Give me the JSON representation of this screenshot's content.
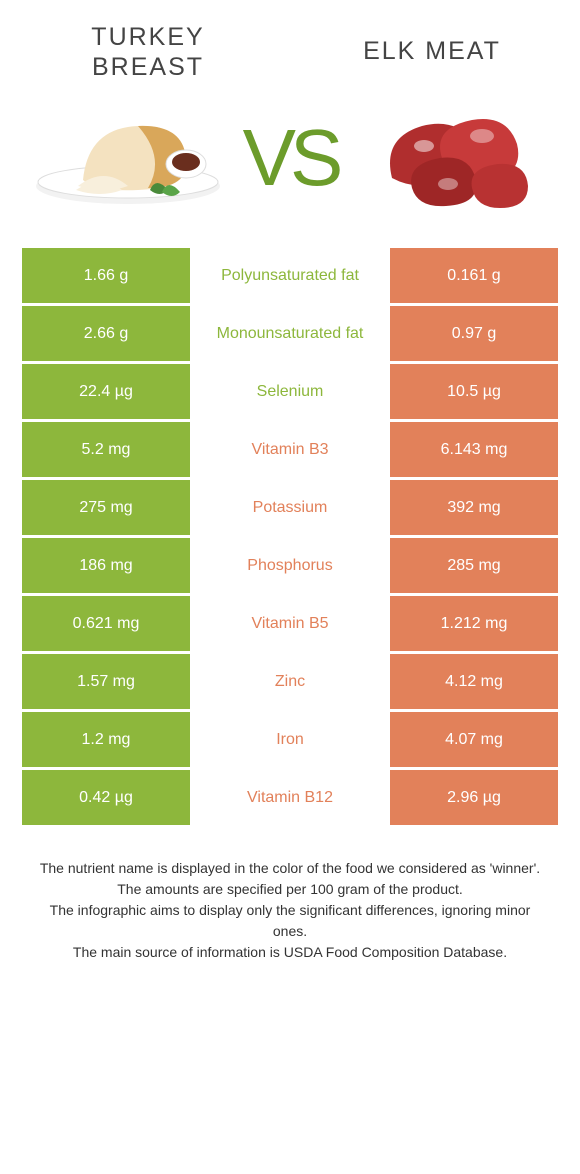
{
  "colors": {
    "green": "#8db73c",
    "orange": "#e2815a",
    "background": "#ffffff",
    "midBg": "#ffffff",
    "text": "#333333",
    "vs": "#6c9c2b"
  },
  "header": {
    "left_title": "TURKEY BREAST",
    "right_title": "ELK MEAT",
    "vs_label": "VS"
  },
  "table": {
    "rows": [
      {
        "left": "1.66 g",
        "label": "Polyunsaturated fat",
        "right": "0.161 g",
        "winner": "left"
      },
      {
        "left": "2.66 g",
        "label": "Monounsaturated fat",
        "right": "0.97 g",
        "winner": "left"
      },
      {
        "left": "22.4 µg",
        "label": "Selenium",
        "right": "10.5 µg",
        "winner": "left"
      },
      {
        "left": "5.2 mg",
        "label": "Vitamin B3",
        "right": "6.143 mg",
        "winner": "right"
      },
      {
        "left": "275 mg",
        "label": "Potassium",
        "right": "392 mg",
        "winner": "right"
      },
      {
        "left": "186 mg",
        "label": "Phosphorus",
        "right": "285 mg",
        "winner": "right"
      },
      {
        "left": "0.621 mg",
        "label": "Vitamin B5",
        "right": "1.212 mg",
        "winner": "right"
      },
      {
        "left": "1.57 mg",
        "label": "Zinc",
        "right": "4.12 mg",
        "winner": "right"
      },
      {
        "left": "1.2 mg",
        "label": "Iron",
        "right": "4.07 mg",
        "winner": "right"
      },
      {
        "left": "0.42 µg",
        "label": "Vitamin B12",
        "right": "2.96 µg",
        "winner": "right"
      }
    ]
  },
  "footer": {
    "line1": "The nutrient name is displayed in the color of the food we considered as 'winner'.",
    "line2": "The amounts are specified per 100 gram of the product.",
    "line3": "The infographic aims to display only the significant differences, ignoring minor ones.",
    "line4": "The main source of information is USDA Food Composition Database."
  }
}
